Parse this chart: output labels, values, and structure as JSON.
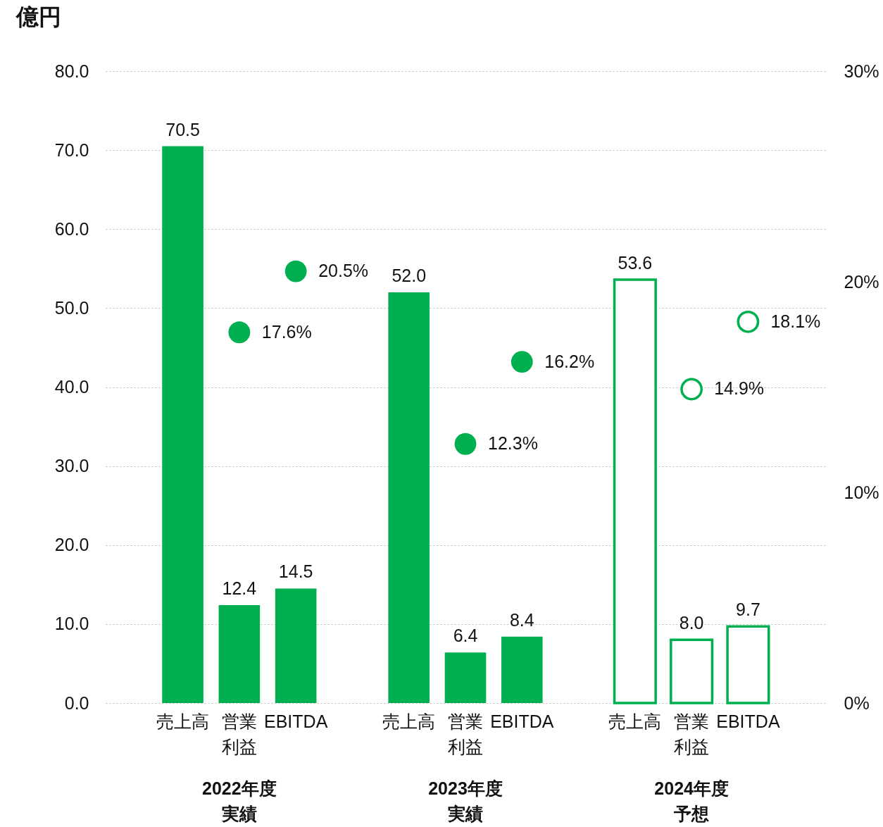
{
  "chart_data": {
    "type": "bar",
    "ylabel": "億円",
    "categories": [
      "売上高",
      "営業利益",
      "EBITDA",
      null,
      "売上高",
      "営業利益",
      "EBITDA",
      null,
      "売上高",
      "営業利益",
      "EBITDA"
    ],
    "series": [
      {
        "color": "#00b050",
        "values": [
          70.5,
          12.4,
          14.5,
          null,
          52.0,
          6.4,
          8.4,
          null,
          null,
          null,
          null
        ],
        "value_labels": [
          "70.5",
          "12.4",
          "14.5",
          null,
          "52.0",
          "6.4",
          "8.4",
          null,
          null,
          null,
          null
        ]
      },
      {
        "color": "#00b050",
        "values": [
          null,
          null,
          null,
          null,
          null,
          null,
          null,
          null,
          53.6,
          8.0,
          9.7
        ],
        "value_labels": [
          null,
          null,
          null,
          null,
          null,
          null,
          null,
          null,
          "53.6",
          "8.0",
          "9.7"
        ]
      },
      {
        "type": "scatter",
        "axis": "y2",
        "color": "#00b050",
        "values": [
          null,
          17.6,
          20.5,
          null,
          null,
          12.3,
          16.2,
          null,
          null,
          null,
          null
        ],
        "value_labels": [
          null,
          "17.6%",
          "20.5%",
          null,
          null,
          "12.3%",
          "16.2%",
          null,
          null,
          null,
          null
        ]
      },
      {
        "type": "scatter",
        "axis": "y2",
        "color": "#00b050",
        "values": [
          null,
          null,
          null,
          null,
          null,
          null,
          null,
          null,
          null,
          14.9,
          18.1
        ],
        "value_labels": [
          null,
          null,
          null,
          null,
          null,
          null,
          null,
          null,
          null,
          "14.9%",
          "18.1%"
        ]
      }
    ],
    "ylim": [
      0,
      80
    ],
    "yticks": [
      {
        "value": 0,
        "label": "0.0"
      },
      {
        "value": 10,
        "label": "10.0"
      },
      {
        "value": 20,
        "label": "20.0"
      },
      {
        "value": 30,
        "label": "30.0"
      },
      {
        "value": 40,
        "label": "40.0"
      },
      {
        "value": 50,
        "label": "50.0"
      },
      {
        "value": 60,
        "label": "60.0"
      },
      {
        "value": 70,
        "label": "70.0"
      },
      {
        "value": 80,
        "label": "80.0"
      }
    ],
    "y2lim": [
      0,
      30
    ],
    "y2ticks": [
      {
        "value": 0,
        "label": "0%"
      },
      {
        "value": 10,
        "label": "10%"
      },
      {
        "value": 20,
        "label": "20%"
      },
      {
        "value": 30,
        "label": "30%"
      }
    ],
    "annotations": [
      "2022年度実績",
      "2023年度実績",
      "2024年度予想"
    ],
    "grid": "y",
    "marker": "circle"
  }
}
